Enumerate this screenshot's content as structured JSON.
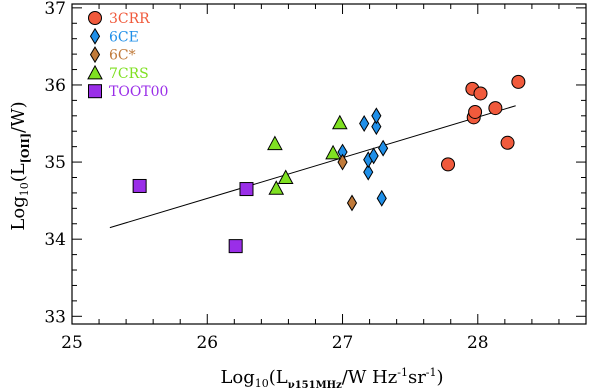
{
  "chart_data": {
    "type": "scatter",
    "xlabel": "Log₁₀(Lν151MHz/W Hz⁻¹sr⁻¹)",
    "xlabel_parts": {
      "pre": "Log",
      "sub1": "10",
      "open": "(L",
      "sub2": "ν151MHz",
      "mid": "/W Hz",
      "sup1": "-1",
      "sr": "sr",
      "sup2": "-1",
      "close": ")"
    },
    "ylabel": "Log₁₀(L[OII]/W)",
    "ylabel_parts": {
      "pre": "Log",
      "sub1": "10",
      "open": "(L",
      "sub2": "[OII]",
      "close": "/W)"
    },
    "xlim": [
      25.0,
      28.8
    ],
    "ylim": [
      32.9,
      37.05
    ],
    "xticks": [
      25,
      26,
      27,
      28
    ],
    "yticks": [
      33,
      34,
      35,
      36,
      37
    ],
    "grid": false,
    "legend_position": "top-left",
    "series": [
      {
        "name": "3CRR",
        "marker": "circle",
        "color": "#f05a3c",
        "points": [
          [
            27.78,
            34.97
          ],
          [
            27.96,
            35.95
          ],
          [
            27.97,
            35.58
          ],
          [
            27.98,
            35.65
          ],
          [
            28.02,
            35.89
          ],
          [
            28.13,
            35.7
          ],
          [
            28.22,
            35.25
          ],
          [
            28.3,
            36.04
          ]
        ]
      },
      {
        "name": "6CE",
        "marker": "diamond",
        "color": "#1f8fe8",
        "points": [
          [
            27.0,
            35.13
          ],
          [
            27.16,
            35.5
          ],
          [
            27.19,
            34.87
          ],
          [
            27.19,
            35.03
          ],
          [
            27.23,
            35.08
          ],
          [
            27.25,
            35.46
          ],
          [
            27.25,
            35.6
          ],
          [
            27.3,
            35.18
          ],
          [
            27.29,
            34.53
          ]
        ]
      },
      {
        "name": "6C*",
        "marker": "diamond",
        "color": "#c07a3a",
        "points": [
          [
            27.0,
            35.0
          ],
          [
            27.07,
            34.47
          ]
        ]
      },
      {
        "name": "7CRS",
        "marker": "triangle",
        "color": "#7fe022",
        "points": [
          [
            26.5,
            35.24
          ],
          [
            26.51,
            34.66
          ],
          [
            26.58,
            34.8
          ],
          [
            26.93,
            35.12
          ],
          [
            26.98,
            35.51
          ]
        ]
      },
      {
        "name": "TOOT00",
        "marker": "square",
        "color": "#9a2ee8",
        "points": [
          [
            25.5,
            34.69
          ],
          [
            26.21,
            33.91
          ],
          [
            26.29,
            34.65
          ]
        ]
      }
    ],
    "fit_line": {
      "x": [
        25.28,
        28.28
      ],
      "y": [
        34.15,
        35.73
      ]
    }
  }
}
